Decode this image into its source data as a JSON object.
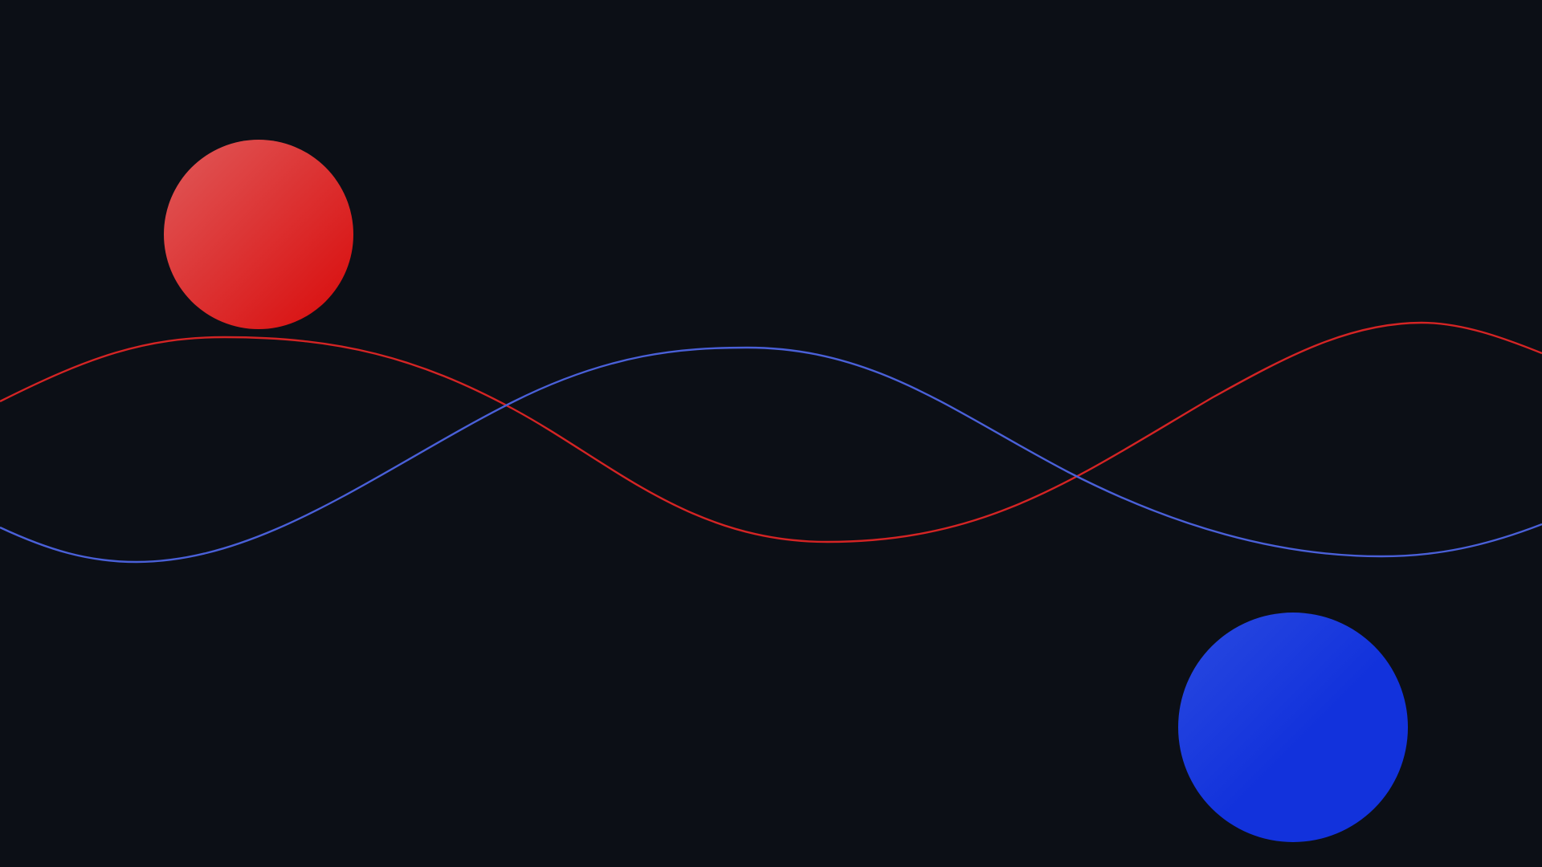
{
  "background_color": "#0c0f16",
  "shapes": {
    "red_circle": {
      "gradient_start": "#e05a5a",
      "gradient_end": "#d80a0a"
    },
    "blue_circle": {
      "gradient_start": "#2a4ae0",
      "gradient_end": "#1232dc"
    }
  },
  "waves": {
    "red_wave": {
      "color": "#d42424"
    },
    "blue_wave": {
      "color": "#4a60d8"
    }
  }
}
